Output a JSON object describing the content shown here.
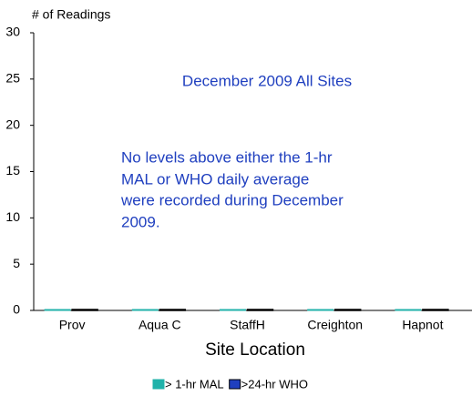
{
  "chart_data": {
    "type": "bar",
    "y_label": "# of Readings",
    "x_label": "Site Location",
    "annotations": [
      "December 2009 All Sites",
      "No levels above either the 1-hr",
      "MAL or WHO daily average",
      "were recorded during December",
      "2009."
    ],
    "categories": [
      "Prov",
      "Aqua C",
      "StaffH",
      "Creighton",
      "Hapnot"
    ],
    "series": [
      {
        "name": "> 1-hr MAL",
        "color": "#20b2aa",
        "values": [
          0,
          0,
          0,
          0,
          0
        ]
      },
      {
        "name": ">24-hr WHO",
        "color": "#1f3fbf",
        "values": [
          0,
          0,
          0,
          0,
          0
        ]
      }
    ],
    "ylim": [
      0,
      30
    ],
    "yticks": [
      0,
      5,
      10,
      15,
      20,
      25,
      30
    ],
    "legend": "bottom"
  }
}
